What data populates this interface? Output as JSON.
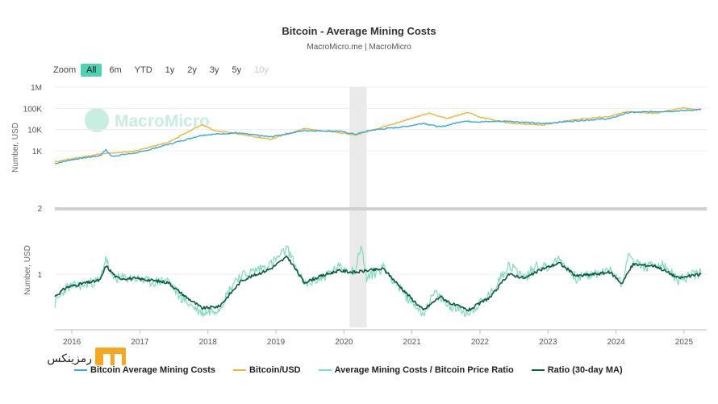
{
  "header": {
    "title": "Bitcoin - Average Mining Costs",
    "subtitle": "MacroMicro.me | MacroMicro"
  },
  "zoom": {
    "label": "Zoom",
    "buttons": [
      {
        "label": "All",
        "state": "active"
      },
      {
        "label": "6m",
        "state": "normal"
      },
      {
        "label": "YTD",
        "state": "normal"
      },
      {
        "label": "1y",
        "state": "normal"
      },
      {
        "label": "2y",
        "state": "normal"
      },
      {
        "label": "3y",
        "state": "normal"
      },
      {
        "label": "5y",
        "state": "normal"
      },
      {
        "label": "10y",
        "state": "disabled"
      }
    ]
  },
  "watermark": {
    "text": "MacroMicro"
  },
  "brand": {
    "text": "رمزینکس"
  },
  "colors": {
    "mining_cost": "#3aa9d6",
    "btc_price": "#f0b43c",
    "ratio": "#7fdcbc",
    "ratio_ma": "#0e5a3e",
    "highlight": "#e6e6e6",
    "watermark": "#9adfcc"
  },
  "chart_data": [
    {
      "type": "line",
      "ylabel": "Number, USD",
      "y_scale": "log",
      "ylim": [
        2,
        1000000
      ],
      "y_ticks": [
        "1M",
        "100K",
        "10K",
        "1K",
        "2"
      ],
      "x_range": [
        "2015-10",
        "2025-05"
      ],
      "highlight_band": [
        "2020-02",
        "2020-05"
      ],
      "series": [
        {
          "name": "Bitcoin Average Mining Costs",
          "points": [
            [
              "2015-10",
              250
            ],
            [
              "2016-01",
              380
            ],
            [
              "2016-06",
              600
            ],
            [
              "2016-07",
              1100
            ],
            [
              "2016-08",
              550
            ],
            [
              "2017-01",
              850
            ],
            [
              "2017-06",
              2000
            ],
            [
              "2017-12",
              5500
            ],
            [
              "2018-06",
              7000
            ],
            [
              "2018-12",
              4500
            ],
            [
              "2019-06",
              9000
            ],
            [
              "2019-12",
              8500
            ],
            [
              "2020-03",
              6000
            ],
            [
              "2020-06",
              9500
            ],
            [
              "2020-12",
              14000
            ],
            [
              "2021-03",
              20000
            ],
            [
              "2021-06",
              13000
            ],
            [
              "2021-10",
              25000
            ],
            [
              "2022-01",
              23000
            ],
            [
              "2022-06",
              25000
            ],
            [
              "2022-12",
              19000
            ],
            [
              "2023-06",
              26000
            ],
            [
              "2023-12",
              33000
            ],
            [
              "2024-03",
              62000
            ],
            [
              "2024-06",
              68000
            ],
            [
              "2024-12",
              75000
            ],
            [
              "2025-04",
              88000
            ]
          ]
        },
        {
          "name": "Bitcoin/USD",
          "points": [
            [
              "2015-10",
              300
            ],
            [
              "2016-01",
              420
            ],
            [
              "2016-06",
              700
            ],
            [
              "2016-12",
              950
            ],
            [
              "2017-06",
              2500
            ],
            [
              "2017-12",
              17500
            ],
            [
              "2018-02",
              9000
            ],
            [
              "2018-06",
              6500
            ],
            [
              "2018-12",
              3500
            ],
            [
              "2019-06",
              11000
            ],
            [
              "2019-12",
              7200
            ],
            [
              "2020-03",
              5500
            ],
            [
              "2020-06",
              9400
            ],
            [
              "2020-12",
              28000
            ],
            [
              "2021-04",
              60000
            ],
            [
              "2021-07",
              33000
            ],
            [
              "2021-11",
              64000
            ],
            [
              "2022-01",
              38000
            ],
            [
              "2022-06",
              20000
            ],
            [
              "2022-12",
              16500
            ],
            [
              "2023-06",
              30000
            ],
            [
              "2023-12",
              42000
            ],
            [
              "2024-03",
              70000
            ],
            [
              "2024-08",
              58000
            ],
            [
              "2024-12",
              97000
            ],
            [
              "2025-01",
              102000
            ],
            [
              "2025-04",
              85000
            ]
          ]
        }
      ]
    },
    {
      "type": "line",
      "ylabel": "Number, USD",
      "y_scale": "log",
      "ylim": [
        0.25,
        4
      ],
      "y_ticks": [
        "1"
      ],
      "x_ticks": [
        "2016",
        "2017",
        "2018",
        "2019",
        "2020",
        "2021",
        "2022",
        "2023",
        "2024",
        "2025"
      ],
      "series": [
        {
          "name": "Average Mining Costs / Bitcoin Price Ratio",
          "points": [
            [
              "2015-10",
              0.45
            ],
            [
              "2015-12",
              0.7
            ],
            [
              "2016-03",
              0.75
            ],
            [
              "2016-06",
              0.85
            ],
            [
              "2016-07",
              1.6
            ],
            [
              "2016-08",
              0.9
            ],
            [
              "2016-12",
              0.9
            ],
            [
              "2017-03",
              0.8
            ],
            [
              "2017-06",
              0.85
            ],
            [
              "2017-08",
              0.55
            ],
            [
              "2017-12",
              0.35
            ],
            [
              "2018-03",
              0.4
            ],
            [
              "2018-06",
              0.9
            ],
            [
              "2018-12",
              1.3
            ],
            [
              "2019-02",
              1.7
            ],
            [
              "2019-03",
              2.0
            ],
            [
              "2019-06",
              0.75
            ],
            [
              "2019-09",
              0.9
            ],
            [
              "2019-12",
              1.2
            ],
            [
              "2020-03",
              1.1
            ],
            [
              "2020-04",
              2.2
            ],
            [
              "2020-05",
              0.9
            ],
            [
              "2020-08",
              1.2
            ],
            [
              "2020-12",
              0.55
            ],
            [
              "2021-03",
              0.35
            ],
            [
              "2021-05",
              0.6
            ],
            [
              "2021-07",
              0.45
            ],
            [
              "2021-11",
              0.35
            ],
            [
              "2022-03",
              0.6
            ],
            [
              "2022-06",
              1.3
            ],
            [
              "2022-09",
              0.9
            ],
            [
              "2022-11",
              1.3
            ],
            [
              "2023-01",
              1.2
            ],
            [
              "2023-03",
              1.5
            ],
            [
              "2023-06",
              0.9
            ],
            [
              "2023-12",
              1.1
            ],
            [
              "2024-01",
              1.0
            ],
            [
              "2024-02",
              0.75
            ],
            [
              "2024-03",
              1.6
            ],
            [
              "2024-06",
              1.2
            ],
            [
              "2024-09",
              1.3
            ],
            [
              "2024-12",
              0.85
            ],
            [
              "2025-04",
              1.05
            ]
          ]
        },
        {
          "name": "Ratio (30-day MA)",
          "points": [
            [
              "2015-10",
              0.55
            ],
            [
              "2015-12",
              0.7
            ],
            [
              "2016-03",
              0.78
            ],
            [
              "2016-06",
              0.85
            ],
            [
              "2016-07",
              1.25
            ],
            [
              "2016-09",
              0.9
            ],
            [
              "2017-01",
              0.88
            ],
            [
              "2017-06",
              0.8
            ],
            [
              "2017-09",
              0.55
            ],
            [
              "2017-12",
              0.4
            ],
            [
              "2018-03",
              0.42
            ],
            [
              "2018-07",
              0.85
            ],
            [
              "2018-12",
              1.15
            ],
            [
              "2019-03",
              1.6
            ],
            [
              "2019-06",
              0.8
            ],
            [
              "2019-09",
              0.95
            ],
            [
              "2019-12",
              1.1
            ],
            [
              "2020-03",
              1.05
            ],
            [
              "2020-05",
              1.1
            ],
            [
              "2020-08",
              1.15
            ],
            [
              "2020-12",
              0.6
            ],
            [
              "2021-03",
              0.38
            ],
            [
              "2021-06",
              0.55
            ],
            [
              "2021-08",
              0.45
            ],
            [
              "2021-11",
              0.38
            ],
            [
              "2022-03",
              0.55
            ],
            [
              "2022-06",
              1.0
            ],
            [
              "2022-09",
              0.9
            ],
            [
              "2022-12",
              1.15
            ],
            [
              "2023-03",
              1.35
            ],
            [
              "2023-06",
              0.95
            ],
            [
              "2023-12",
              1.05
            ],
            [
              "2024-02",
              0.78
            ],
            [
              "2024-04",
              1.3
            ],
            [
              "2024-08",
              1.25
            ],
            [
              "2024-12",
              0.9
            ],
            [
              "2025-04",
              1.0
            ]
          ]
        }
      ]
    }
  ]
}
